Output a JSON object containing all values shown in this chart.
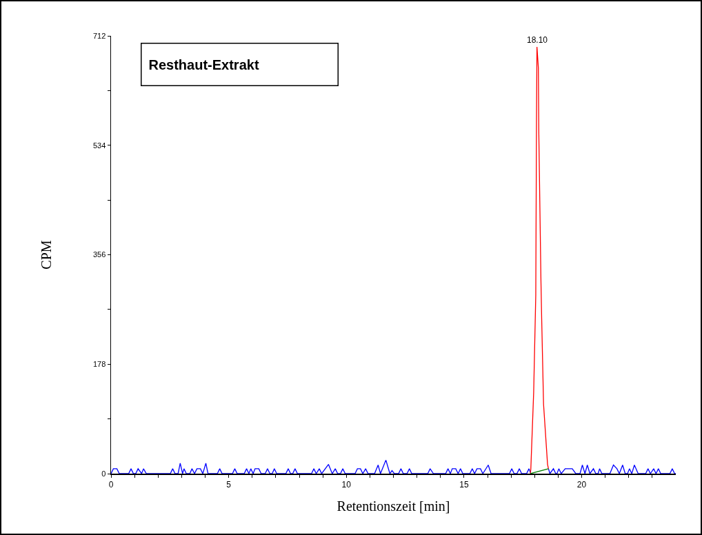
{
  "chart_data": {
    "type": "line",
    "title": "Resthaut-Extrakt",
    "xlabel": "Retentionszeit [min]",
    "ylabel": "CPM",
    "xlim": [
      0,
      24
    ],
    "ylim": [
      0,
      712
    ],
    "xticks": [
      0,
      {
        "value": 1,
        "label": null
      },
      {
        "value": 2,
        "label": null
      },
      {
        "value": 3,
        "label": null
      },
      {
        "value": 4,
        "label": null
      },
      5,
      {
        "value": 6,
        "label": null
      },
      {
        "value": 7,
        "label": null
      },
      {
        "value": 8,
        "label": null
      },
      {
        "value": 9,
        "label": null
      },
      10,
      {
        "value": 11,
        "label": null
      },
      {
        "value": 12,
        "label": null
      },
      {
        "value": 13,
        "label": null
      },
      {
        "value": 14,
        "label": null
      },
      15,
      {
        "value": 16,
        "label": null
      },
      {
        "value": 17,
        "label": null
      },
      {
        "value": 18,
        "label": null
      },
      {
        "value": 19,
        "label": null
      },
      20,
      {
        "value": 21,
        "label": null
      },
      {
        "value": 22,
        "label": null
      },
      {
        "value": 23,
        "label": null
      }
    ],
    "yticks": [
      0,
      {
        "value": 89,
        "label": null
      },
      178,
      {
        "value": 267,
        "label": null
      },
      356,
      {
        "value": 445,
        "label": null
      },
      534,
      {
        "value": 623,
        "label": null
      },
      712
    ],
    "grid": false,
    "marker": "none",
    "line_style": "solid",
    "annotations": [
      {
        "text": "18.10",
        "x": 18.1,
        "y": 694
      }
    ],
    "series": [
      {
        "color": "#0000ff",
        "x": [
          0,
          0.1,
          0.25,
          0.35,
          0.75,
          0.85,
          0.95,
          1.05,
          1.15,
          1.3,
          1.38,
          1.5,
          2.52,
          2.62,
          2.72,
          2.85,
          2.94,
          3.04,
          3.1,
          3.2,
          3.35,
          3.44,
          3.55,
          3.65,
          3.8,
          3.9,
          4.03,
          4.12,
          4.52,
          4.62,
          4.72,
          5.16,
          5.26,
          5.36,
          5.66,
          5.76,
          5.86,
          5.94,
          6.04,
          6.12,
          6.28,
          6.38,
          6.55,
          6.65,
          6.75,
          6.85,
          6.94,
          7.04,
          7.43,
          7.53,
          7.63,
          7.72,
          7.82,
          7.92,
          8.52,
          8.62,
          8.72,
          8.85,
          8.95,
          9.24,
          9.4,
          9.53,
          9.63,
          9.75,
          9.85,
          9.95,
          10.37,
          10.47,
          10.6,
          10.7,
          10.82,
          10.92,
          11.2,
          11.35,
          11.45,
          11.68,
          11.85,
          11.94,
          12.04,
          12.22,
          12.32,
          12.42,
          12.58,
          12.68,
          12.78,
          13.46,
          13.56,
          13.7,
          14.22,
          14.32,
          14.42,
          14.5,
          14.65,
          14.75,
          14.85,
          14.95,
          15.25,
          15.35,
          15.45,
          15.55,
          15.7,
          15.8,
          16.03,
          16.15,
          16.93,
          17.03,
          17.13,
          17.25,
          17.35,
          17.45,
          17.66,
          17.76,
          17.84,
          18.2,
          18.59,
          18.65,
          18.8,
          18.9,
          18.95,
          19.03,
          19.13,
          19.3,
          19.6,
          19.75,
          19.93,
          20.03,
          20.14,
          20.24,
          20.35,
          20.5,
          20.6,
          20.7,
          20.76,
          20.86,
          21.2,
          21.35,
          21.5,
          21.6,
          21.74,
          21.85,
          21.95,
          22.03,
          22.13,
          22.24,
          22.4,
          22.72,
          22.82,
          22.92,
          23.06,
          23.16,
          23.26,
          23.36,
          23.75,
          23.85,
          23.95,
          24
        ],
        "values": [
          0,
          8,
          8,
          0,
          0,
          8,
          0,
          0,
          8,
          0,
          8,
          0,
          0,
          8,
          0,
          0,
          17,
          0,
          8,
          0,
          0,
          8,
          0,
          8,
          8,
          0,
          17,
          0,
          0,
          8,
          0,
          0,
          8,
          0,
          0,
          8,
          0,
          8,
          0,
          8,
          8,
          0,
          0,
          8,
          0,
          0,
          8,
          0,
          0,
          8,
          0,
          0,
          8,
          0,
          0,
          8,
          0,
          8,
          0,
          15,
          0,
          8,
          0,
          0,
          8,
          0,
          0,
          8,
          8,
          0,
          8,
          0,
          0,
          14,
          0,
          22,
          0,
          5,
          0,
          0,
          8,
          0,
          0,
          8,
          0,
          0,
          8,
          0,
          0,
          8,
          0,
          8,
          8,
          0,
          8,
          0,
          0,
          8,
          0,
          8,
          8,
          0,
          14,
          0,
          0,
          8,
          0,
          0,
          8,
          0,
          0,
          8,
          0,
          null,
          8,
          0,
          8,
          0,
          0,
          8,
          0,
          8,
          8,
          0,
          0,
          14,
          0,
          14,
          0,
          8,
          0,
          0,
          8,
          0,
          0,
          14,
          8,
          0,
          14,
          0,
          0,
          8,
          0,
          14,
          0,
          0,
          8,
          0,
          8,
          0,
          8,
          0,
          0,
          8,
          0,
          0
        ]
      },
      {
        "color": "#ff0000",
        "x": [
          17.82,
          17.84,
          17.96,
          18.05,
          18.08,
          18.1,
          18.16,
          18.18,
          18.22,
          18.27,
          18.3,
          18.38,
          18.55,
          18.59
        ],
        "values": [
          0,
          8,
          132,
          291,
          571,
          694,
          660,
          552,
          445,
          313,
          253,
          113,
          15,
          8
        ]
      },
      {
        "color": "#008000",
        "x": [
          17.82,
          18.59
        ],
        "values": [
          0,
          8
        ]
      }
    ]
  }
}
